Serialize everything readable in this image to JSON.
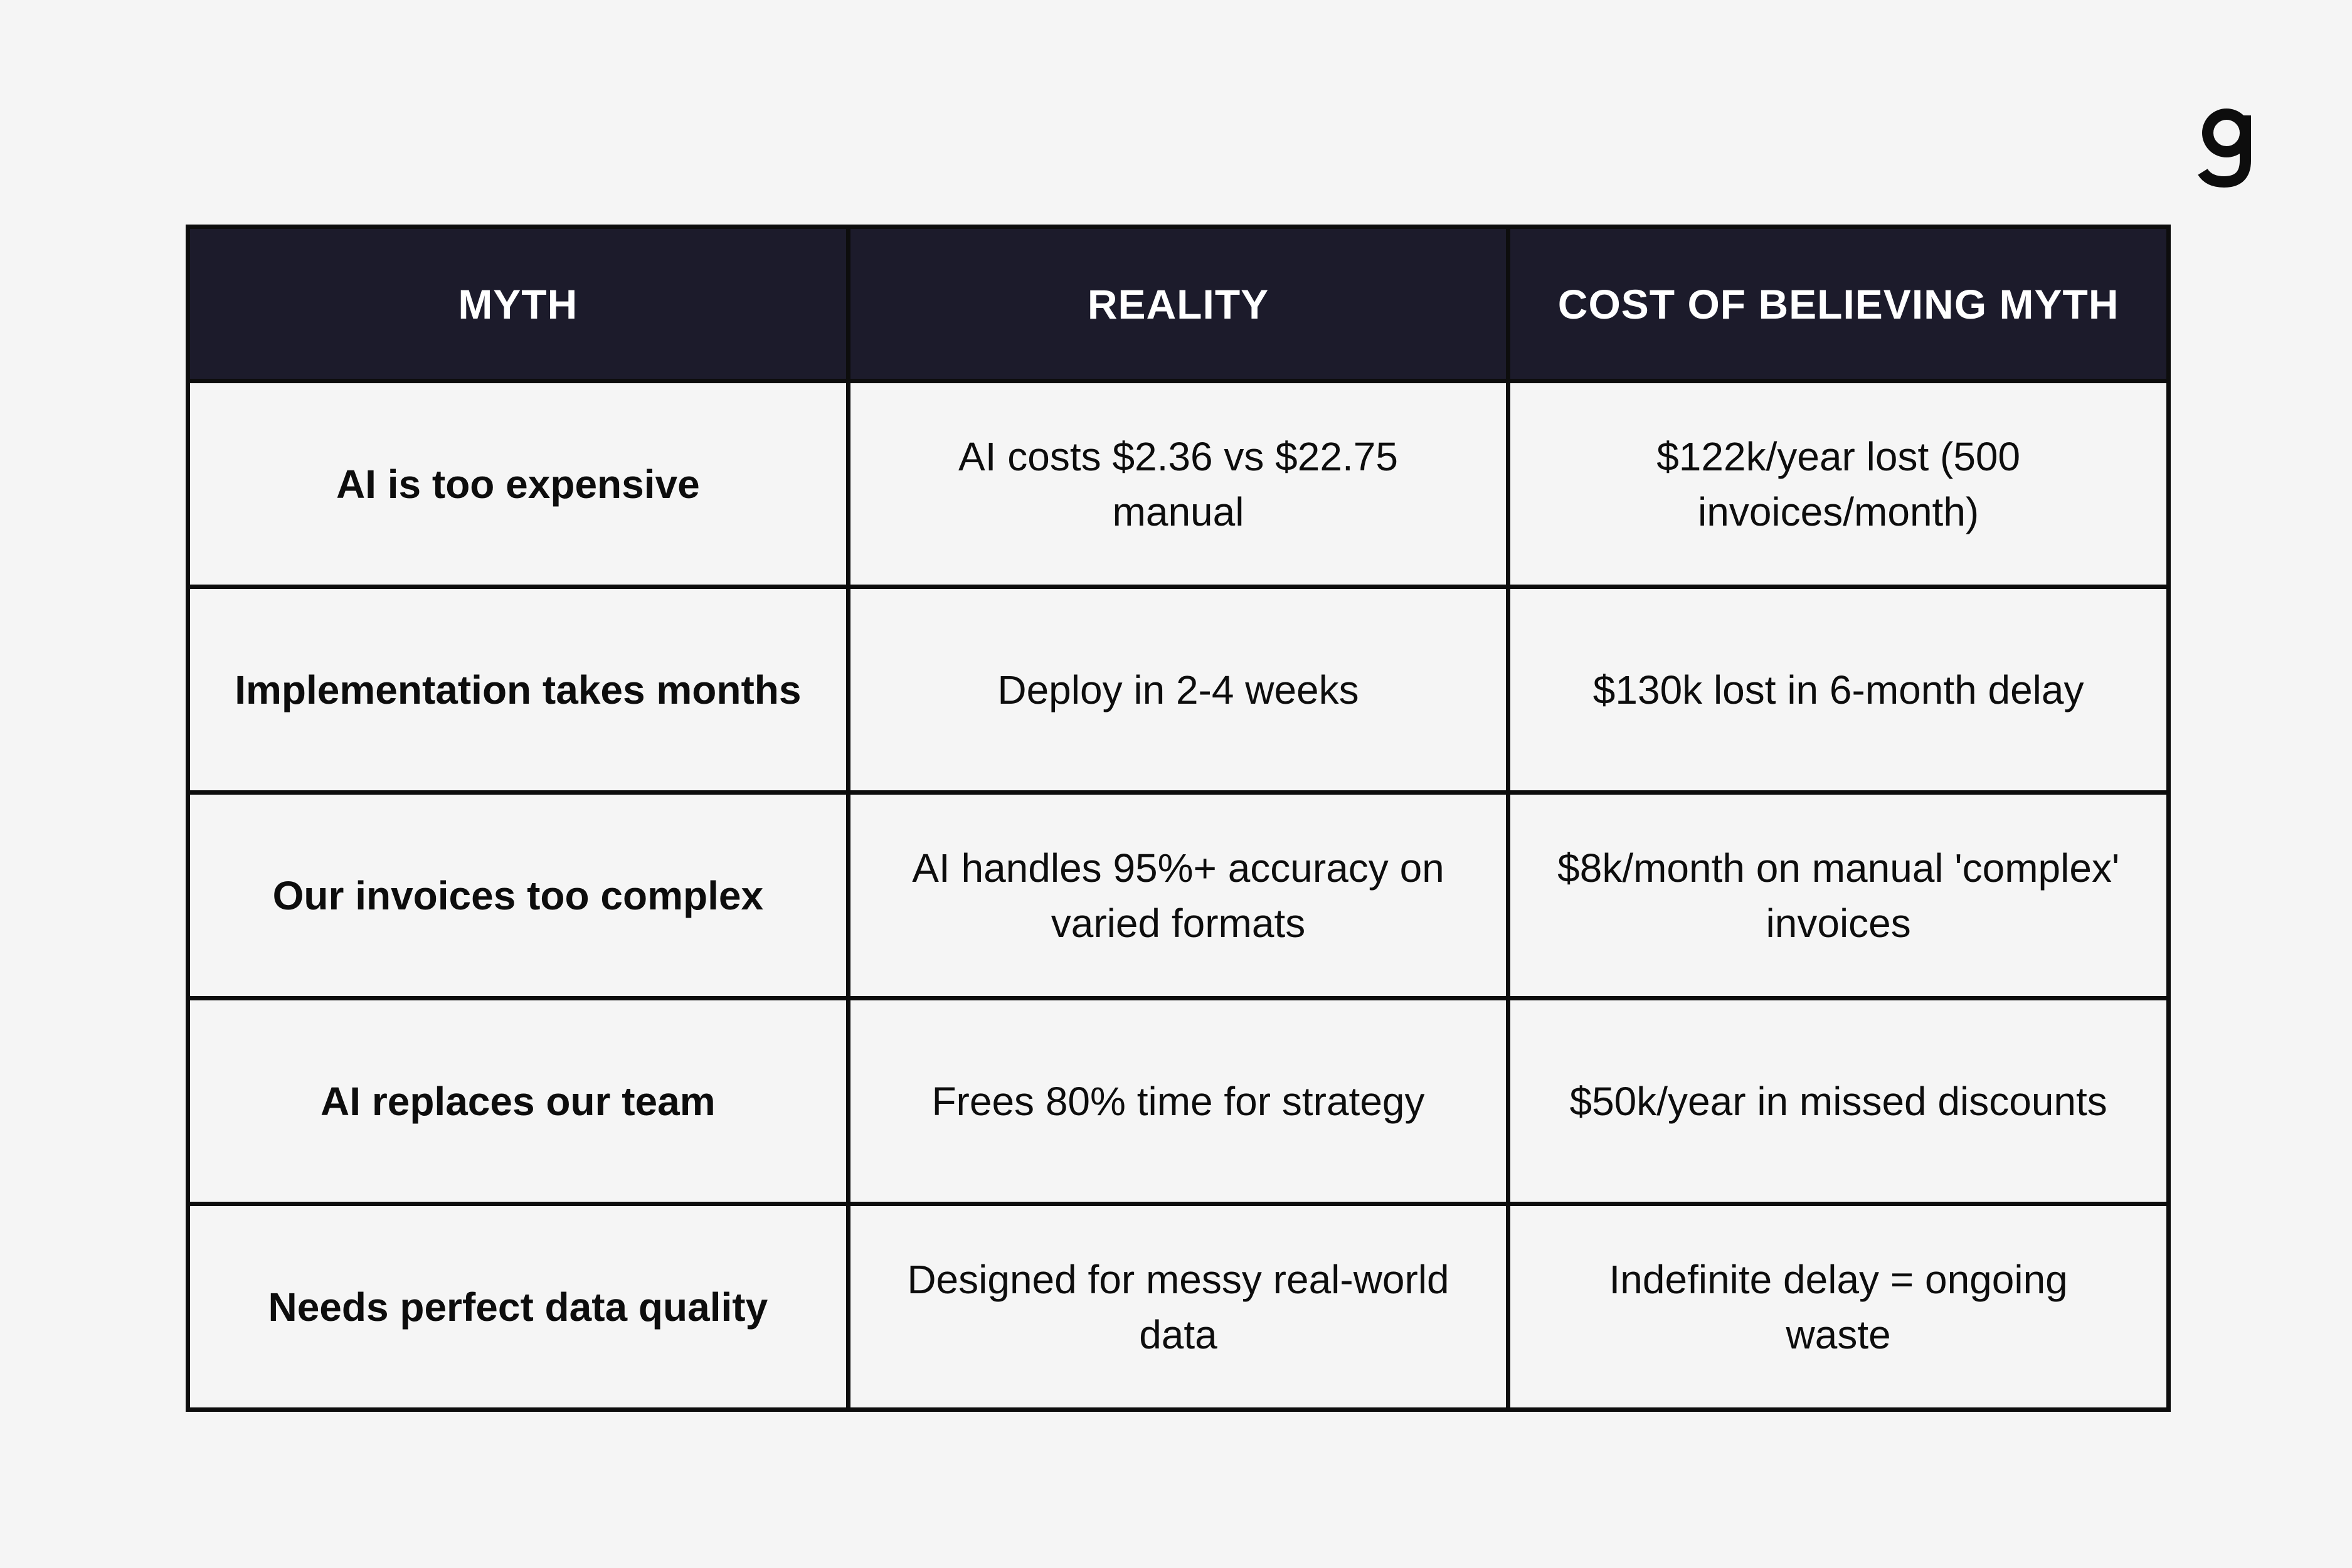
{
  "brand": {
    "logo_icon": "g-logo-icon"
  },
  "table": {
    "headers": [
      "MYTH",
      "REALITY",
      "COST OF BELIEVING MYTH"
    ],
    "rows": [
      [
        "AI is too expensive",
        "AI costs $2.36 vs $22.75 manual",
        "$122k/year lost (500 invoices/month)"
      ],
      [
        "Implementation takes months",
        "Deploy in 2-4 weeks",
        "$130k lost in 6-month delay"
      ],
      [
        "Our invoices too complex",
        "AI handles 95%+ accuracy on varied formats",
        "$8k/month on manual 'complex' invoices"
      ],
      [
        "AI replaces our team",
        "Frees 80% time for strategy",
        "$50k/year in missed discounts"
      ],
      [
        "Needs perfect data quality",
        "Designed for messy real-world data",
        "Indefinite delay = ongoing waste"
      ]
    ]
  },
  "colors": {
    "background": "#f5f5f5",
    "header_bg": "#1c1b2b",
    "header_text": "#ffffff",
    "border": "#0d0d0d"
  }
}
